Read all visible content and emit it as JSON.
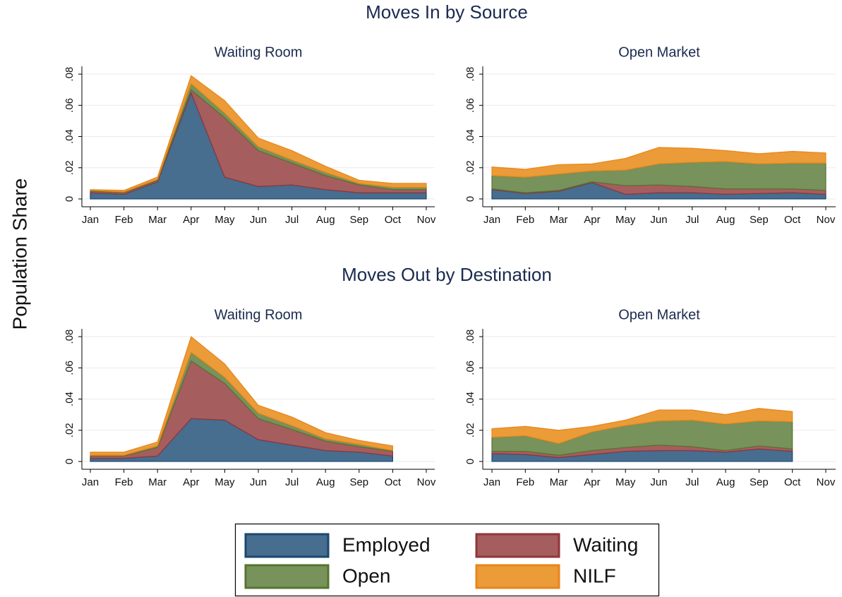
{
  "figure": {
    "y_label": "Population Share",
    "section_titles": [
      "Moves In by Source",
      "Moves Out by Destination"
    ]
  },
  "chart_data": [
    {
      "type": "area",
      "stacked": true,
      "title": "Waiting Room",
      "categories": [
        "Jan",
        "Feb",
        "Mar",
        "Apr",
        "May",
        "Jun",
        "Jul",
        "Aug",
        "Sep",
        "Oct",
        "Nov"
      ],
      "ylim": [
        -0.005,
        0.085
      ],
      "yticks": [
        0,
        {
          "value": 0.02,
          "label": ".02"
        },
        {
          "value": 0.04,
          "label": ".04"
        },
        {
          "value": 0.06,
          "label": ".06"
        },
        {
          "value": 0.08,
          "label": ".08"
        }
      ],
      "grid": true,
      "series": [
        {
          "name": "Employed",
          "color": "#476d8f",
          "line_color": "#1a476f",
          "values": [
            0.004,
            0.003,
            0.011,
            0.068,
            0.014,
            0.008,
            0.009,
            0.006,
            0.004,
            0.004,
            0.004
          ]
        },
        {
          "name": "Waiting",
          "color": "#a65d5d",
          "line_color": "#90353b",
          "values": [
            0.001,
            0.001,
            0.001,
            0.002,
            0.038,
            0.023,
            0.014,
            0.009,
            0.005,
            0.002,
            0.002
          ]
        },
        {
          "name": "Open",
          "color": "#77925a",
          "line_color": "#55752f",
          "values": [
            0.0005,
            0.0005,
            0.0005,
            0.004,
            0.003,
            0.0025,
            0.002,
            0.002,
            0.001,
            0.0015,
            0.0015
          ]
        },
        {
          "name": "NILF",
          "color": "#eb9b38",
          "line_color": "#e8861a",
          "values": [
            0.0005,
            0.001,
            0.0015,
            0.005,
            0.008,
            0.0055,
            0.006,
            0.004,
            0.002,
            0.0025,
            0.0025
          ]
        }
      ]
    },
    {
      "type": "area",
      "stacked": true,
      "title": "Open Market",
      "categories": [
        "Jan",
        "Feb",
        "Mar",
        "Apr",
        "May",
        "Jun",
        "Jul",
        "Aug",
        "Sep",
        "Oct",
        "Nov"
      ],
      "ylim": [
        -0.005,
        0.085
      ],
      "yticks": [
        0,
        {
          "value": 0.02,
          "label": ".02"
        },
        {
          "value": 0.04,
          "label": ".04"
        },
        {
          "value": 0.06,
          "label": ".06"
        },
        {
          "value": 0.08,
          "label": ".08"
        }
      ],
      "grid": true,
      "series": [
        {
          "name": "Employed",
          "color": "#476d8f",
          "line_color": "#1a476f",
          "values": [
            0.006,
            0.0035,
            0.005,
            0.0105,
            0.003,
            0.004,
            0.004,
            0.003,
            0.0035,
            0.004,
            0.003
          ]
        },
        {
          "name": "Waiting",
          "color": "#a65d5d",
          "line_color": "#90353b",
          "values": [
            0.0005,
            0.0005,
            0.0005,
            0.0005,
            0.0055,
            0.005,
            0.004,
            0.0035,
            0.003,
            0.0025,
            0.0025
          ]
        },
        {
          "name": "Open",
          "color": "#77925a",
          "line_color": "#55752f",
          "values": [
            0.0085,
            0.01,
            0.0105,
            0.007,
            0.01,
            0.0135,
            0.0155,
            0.0175,
            0.016,
            0.0165,
            0.0175
          ]
        },
        {
          "name": "NILF",
          "color": "#eb9b38",
          "line_color": "#e8861a",
          "values": [
            0.0055,
            0.005,
            0.006,
            0.0045,
            0.0075,
            0.0105,
            0.009,
            0.007,
            0.0065,
            0.0075,
            0.0065
          ]
        }
      ]
    },
    {
      "type": "area",
      "stacked": true,
      "title": "Waiting Room",
      "categories": [
        "Jan",
        "Feb",
        "Mar",
        "Apr",
        "May",
        "Jun",
        "Jul",
        "Aug",
        "Sep",
        "Oct",
        "Nov"
      ],
      "ylim": [
        -0.005,
        0.085
      ],
      "yticks": [
        0,
        {
          "value": 0.02,
          "label": ".02"
        },
        {
          "value": 0.04,
          "label": ".04"
        },
        {
          "value": 0.06,
          "label": ".06"
        },
        {
          "value": 0.08,
          "label": ".08"
        }
      ],
      "grid": true,
      "series": [
        {
          "name": "Employed",
          "color": "#476d8f",
          "line_color": "#1a476f",
          "values": [
            0.002,
            0.002,
            0.0035,
            0.0275,
            0.0265,
            0.014,
            0.0105,
            0.007,
            0.006,
            0.0035,
            null
          ]
        },
        {
          "name": "Waiting",
          "color": "#a65d5d",
          "line_color": "#90353b",
          "values": [
            0.0015,
            0.0015,
            0.0055,
            0.037,
            0.0235,
            0.0135,
            0.01,
            0.006,
            0.0035,
            0.003,
            null
          ]
        },
        {
          "name": "Open",
          "color": "#77925a",
          "line_color": "#55752f",
          "values": [
            0.0005,
            0.0005,
            0.001,
            0.0055,
            0.004,
            0.0035,
            0.0025,
            0.0015,
            0.0015,
            0.0005,
            null
          ]
        },
        {
          "name": "NILF",
          "color": "#eb9b38",
          "line_color": "#e8861a",
          "values": [
            0.002,
            0.002,
            0.0025,
            0.01,
            0.0085,
            0.005,
            0.0055,
            0.004,
            0.0025,
            0.003,
            null
          ]
        }
      ]
    },
    {
      "type": "area",
      "stacked": true,
      "title": "Open Market",
      "categories": [
        "Jan",
        "Feb",
        "Mar",
        "Apr",
        "May",
        "Jun",
        "Jul",
        "Aug",
        "Sep",
        "Oct",
        "Nov"
      ],
      "ylim": [
        -0.005,
        0.085
      ],
      "yticks": [
        0,
        {
          "value": 0.02,
          "label": ".02"
        },
        {
          "value": 0.04,
          "label": ".04"
        },
        {
          "value": 0.06,
          "label": ".06"
        },
        {
          "value": 0.08,
          "label": ".08"
        }
      ],
      "grid": true,
      "series": [
        {
          "name": "Employed",
          "color": "#476d8f",
          "line_color": "#1a476f",
          "values": [
            0.005,
            0.0045,
            0.0025,
            0.0045,
            0.0065,
            0.007,
            0.007,
            0.006,
            0.008,
            0.0065,
            null
          ]
        },
        {
          "name": "Waiting",
          "color": "#a65d5d",
          "line_color": "#90353b",
          "values": [
            0.0015,
            0.002,
            0.0015,
            0.0025,
            0.0025,
            0.0035,
            0.0025,
            0.001,
            0.002,
            0.0015,
            null
          ]
        },
        {
          "name": "Open",
          "color": "#77925a",
          "line_color": "#55752f",
          "values": [
            0.009,
            0.01,
            0.0075,
            0.012,
            0.014,
            0.0155,
            0.017,
            0.017,
            0.016,
            0.0175,
            null
          ]
        },
        {
          "name": "NILF",
          "color": "#eb9b38",
          "line_color": "#e8861a",
          "values": [
            0.0055,
            0.006,
            0.0085,
            0.0035,
            0.0035,
            0.007,
            0.0065,
            0.006,
            0.008,
            0.0065,
            null
          ]
        }
      ]
    }
  ]
}
